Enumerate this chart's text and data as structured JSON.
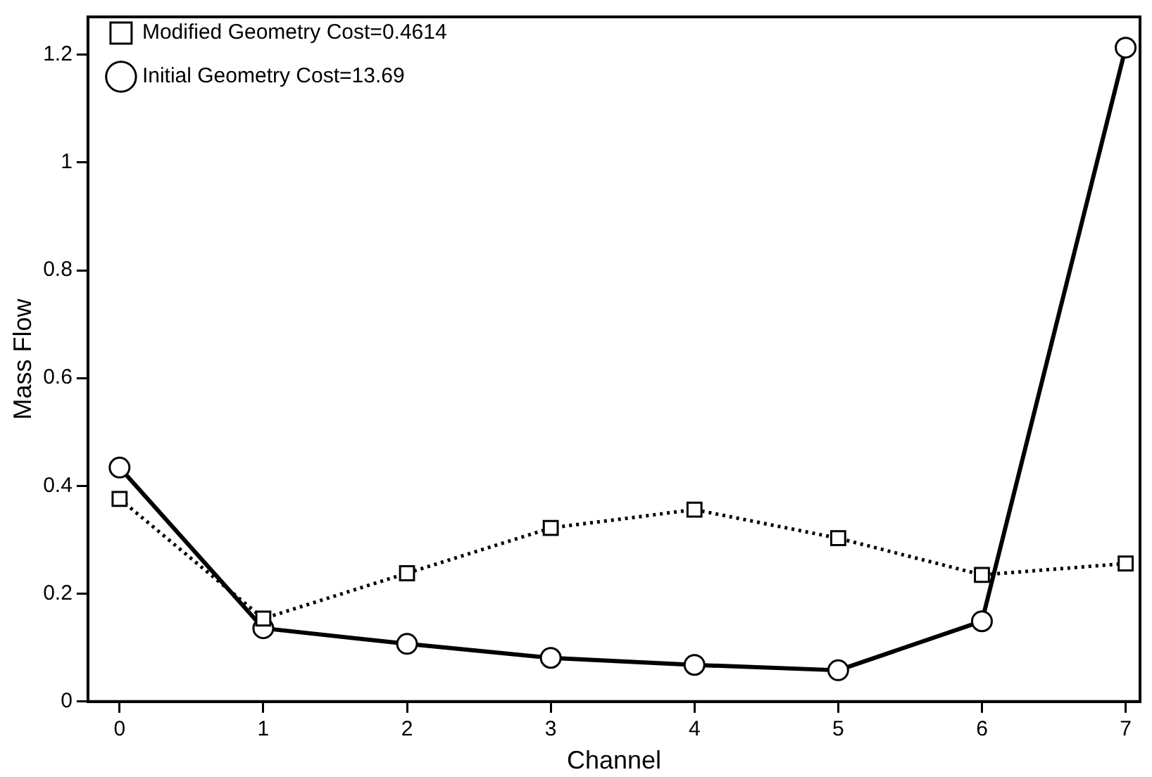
{
  "chart_data": {
    "type": "line",
    "xlabel": "Channel",
    "ylabel": "Mass Flow",
    "x": [
      0,
      1,
      2,
      3,
      4,
      5,
      6,
      7
    ],
    "series": [
      {
        "name": "Initial Geometry Cost=13.69",
        "color": "#000000",
        "values": [
          0.434,
          0.136,
          0.107,
          0.081,
          0.068,
          0.058,
          0.149,
          1.213
        ],
        "marker": "circle",
        "line_style": "solid"
      },
      {
        "name": "Modified Geometry Cost=0.4614",
        "color": "#000000",
        "values": [
          0.376,
          0.154,
          0.238,
          0.322,
          0.356,
          0.303,
          0.235,
          0.256
        ],
        "marker": "square",
        "line_style": "dotted"
      }
    ],
    "xlim": [
      -0.22,
      7.1
    ],
    "ylim": [
      0,
      1.27
    ],
    "xticks": [
      0,
      1,
      2,
      3,
      4,
      5,
      6,
      7
    ],
    "yticks": [
      0,
      0.2,
      0.4,
      0.6,
      0.8,
      1,
      1.2
    ],
    "grid": false,
    "legend": "top left"
  }
}
